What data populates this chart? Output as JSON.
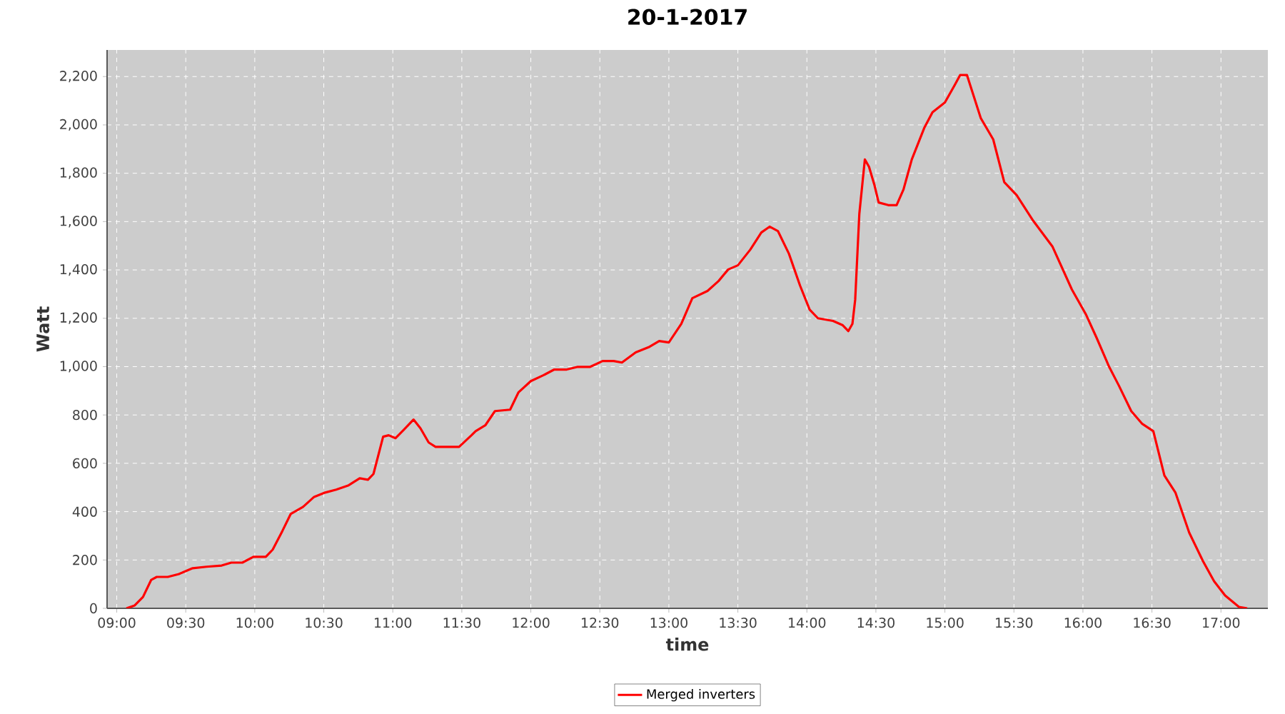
{
  "chart_data": {
    "type": "line",
    "title": "20-1-2017",
    "xlabel": "time",
    "ylabel": "Watt",
    "xlim": [
      8.93,
      17.34
    ],
    "ylim": [
      0,
      2310
    ],
    "xticks": [
      {
        "value": 9,
        "label": "09:00"
      },
      {
        "value": 9.5,
        "label": "09:30"
      },
      {
        "value": 10,
        "label": "10:00"
      },
      {
        "value": 10.5,
        "label": "10:30"
      },
      {
        "value": 11,
        "label": "11:00"
      },
      {
        "value": 11.5,
        "label": "11:30"
      },
      {
        "value": 12,
        "label": "12:00"
      },
      {
        "value": 12.5,
        "label": "12:30"
      },
      {
        "value": 13,
        "label": "13:00"
      },
      {
        "value": 13.5,
        "label": "13:30"
      },
      {
        "value": 14,
        "label": "14:00"
      },
      {
        "value": 14.5,
        "label": "14:30"
      },
      {
        "value": 15,
        "label": "15:00"
      },
      {
        "value": 15.5,
        "label": "15:30"
      },
      {
        "value": 16,
        "label": "16:00"
      },
      {
        "value": 16.5,
        "label": "16:30"
      },
      {
        "value": 17,
        "label": "17:00"
      }
    ],
    "yticks": [
      0,
      200,
      400,
      600,
      800,
      {
        "value": 1000,
        "label": "1,000"
      },
      {
        "value": 1200,
        "label": "1,200"
      },
      {
        "value": 1400,
        "label": "1,400"
      },
      {
        "value": 1600,
        "label": "1,600"
      },
      {
        "value": 1800,
        "label": "1,800"
      },
      {
        "value": 2000,
        "label": "2,000"
      },
      {
        "value": 2200,
        "label": "2,200"
      }
    ],
    "grid": true,
    "legend": "bottom",
    "series": [
      {
        "name": "Merged inverters",
        "color": "#ff0000",
        "x": [
          9.07,
          9.13,
          9.19,
          9.25,
          9.29,
          9.37,
          9.45,
          9.55,
          9.65,
          9.76,
          9.83,
          9.91,
          9.99,
          10.08,
          10.13,
          10.2,
          10.26,
          10.35,
          10.43,
          10.51,
          10.59,
          10.68,
          10.76,
          10.82,
          10.86,
          10.93,
          10.97,
          11.02,
          11.08,
          11.15,
          11.2,
          11.26,
          11.31,
          11.41,
          11.48,
          11.57,
          11.6,
          11.67,
          11.74,
          11.85,
          11.91,
          12.0,
          12.09,
          12.17,
          12.26,
          12.34,
          12.43,
          12.52,
          12.6,
          12.66,
          12.76,
          12.86,
          12.93,
          13.0,
          13.09,
          13.17,
          13.28,
          13.36,
          13.43,
          13.5,
          13.59,
          13.67,
          13.73,
          13.79,
          13.87,
          13.95,
          14.02,
          14.08,
          14.19,
          14.26,
          14.3,
          14.33,
          14.35,
          14.38,
          14.42,
          14.45,
          14.49,
          14.52,
          14.59,
          14.65,
          14.7,
          14.76,
          14.85,
          14.91,
          15.0,
          15.07,
          15.11,
          15.16,
          15.26,
          15.35,
          15.43,
          15.52,
          15.64,
          15.78,
          15.92,
          16.02,
          16.1,
          16.19,
          16.26,
          16.35,
          16.43,
          16.51,
          16.59,
          16.67,
          16.77,
          16.87,
          16.95,
          17.03,
          17.13,
          17.19
        ],
        "values": [
          0,
          12,
          47,
          118,
          130,
          130,
          142,
          166,
          172,
          177,
          189,
          189,
          213,
          213,
          243,
          320,
          390,
          420,
          461,
          479,
          491,
          509,
          538,
          532,
          556,
          710,
          716,
          704,
          739,
          781,
          745,
          686,
          668,
          668,
          668,
          716,
          733,
          757,
          816,
          822,
          893,
          940,
          964,
          988,
          988,
          999,
          999,
          1023,
          1023,
          1017,
          1059,
          1082,
          1106,
          1100,
          1177,
          1283,
          1313,
          1354,
          1402,
          1419,
          1484,
          1555,
          1579,
          1561,
          1467,
          1336,
          1236,
          1200,
          1189,
          1171,
          1147,
          1177,
          1277,
          1632,
          1857,
          1827,
          1750,
          1679,
          1668,
          1668,
          1733,
          1857,
          1987,
          2052,
          2093,
          2164,
          2206,
          2206,
          2028,
          1940,
          1763,
          1709,
          1603,
          1496,
          1319,
          1218,
          1118,
          999,
          922,
          816,
          763,
          733,
          550,
          479,
          313,
          195,
          112,
          53,
          6,
          0
        ]
      }
    ]
  }
}
